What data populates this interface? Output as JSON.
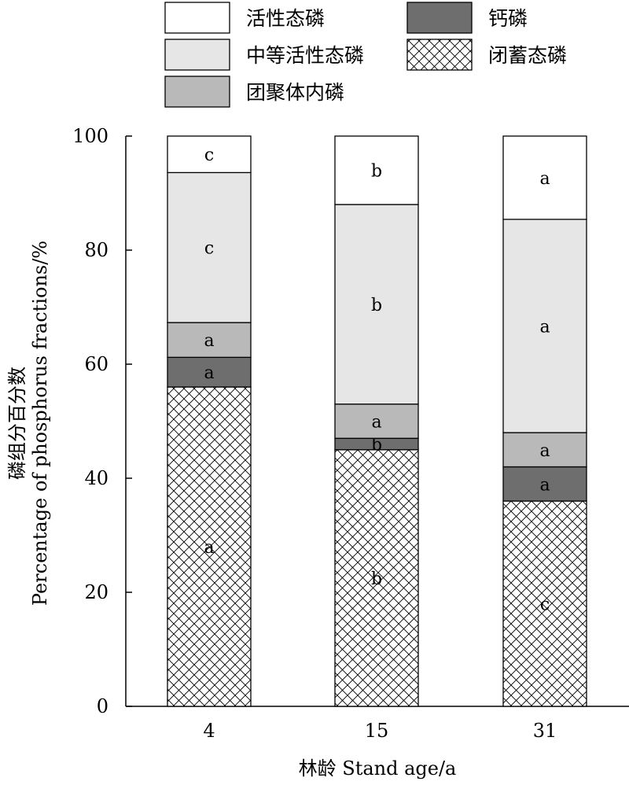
{
  "chart_data": {
    "type": "bar",
    "stacked": true,
    "categories": [
      "4",
      "15",
      "31"
    ],
    "xlabel": "林龄 Stand age/a",
    "ylabel_cn": "磷组分百分数",
    "ylabel_en": "Percentage of phosphorus fractions/%",
    "ylim": [
      0,
      100
    ],
    "yticks": [
      0,
      20,
      40,
      60,
      80,
      100
    ],
    "grid": false,
    "legend_position": "top",
    "series": [
      {
        "name": "闭蓄态磷",
        "values": [
          56,
          45,
          36
        ],
        "letters": [
          "a",
          "b",
          "c"
        ],
        "pattern": "crosshatch",
        "color": "#ffffff"
      },
      {
        "name": "钙磷",
        "values": [
          5.2,
          2,
          6
        ],
        "letters": [
          "a",
          "b",
          "a"
        ],
        "color": "#6e6e6e"
      },
      {
        "name": "团聚体内磷",
        "values": [
          6.1,
          6,
          6
        ],
        "letters": [
          "a",
          "a",
          "a"
        ],
        "color": "#b9b9b9"
      },
      {
        "name": "中等活性态磷",
        "values": [
          26.3,
          35,
          37.4
        ],
        "letters": [
          "c",
          "b",
          "a"
        ],
        "color": "#e6e6e6"
      },
      {
        "name": "活性态磷",
        "values": [
          6.4,
          12,
          14.6
        ],
        "letters": [
          "c",
          "b",
          "a"
        ],
        "color": "#ffffff"
      }
    ],
    "legend_order": [
      "活性态磷",
      "钙磷",
      "中等活性态磷",
      "闭蓄态磷",
      "团聚体内磷"
    ]
  }
}
